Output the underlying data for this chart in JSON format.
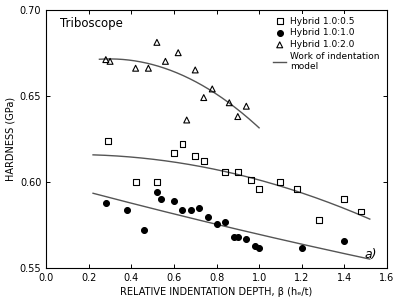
{
  "title_text": "Triboscope",
  "xlabel": "RELATIVE INDENTATION DEPTH, β (hₑ/t)",
  "ylabel": "HARDNESS (GPa)",
  "xlim": [
    0.0,
    1.6
  ],
  "ylim": [
    0.55,
    0.7
  ],
  "xticks": [
    0.0,
    0.2,
    0.4,
    0.6,
    0.8,
    1.0,
    1.2,
    1.4,
    1.6
  ],
  "yticks": [
    0.55,
    0.6,
    0.65,
    0.7
  ],
  "annotation": "a)",
  "hybrid_105_x": [
    0.29,
    0.42,
    0.52,
    0.6,
    0.64,
    0.7,
    0.74,
    0.84,
    0.9,
    0.96,
    1.0,
    1.1,
    1.18,
    1.28,
    1.4,
    1.48
  ],
  "hybrid_105_y": [
    0.624,
    0.6,
    0.6,
    0.617,
    0.622,
    0.615,
    0.612,
    0.606,
    0.606,
    0.601,
    0.596,
    0.6,
    0.596,
    0.578,
    0.59,
    0.583
  ],
  "hybrid_110_x": [
    0.28,
    0.38,
    0.46,
    0.52,
    0.54,
    0.6,
    0.64,
    0.68,
    0.72,
    0.76,
    0.8,
    0.84,
    0.88,
    0.9,
    0.94,
    0.98,
    1.0,
    1.2,
    1.4
  ],
  "hybrid_110_y": [
    0.588,
    0.584,
    0.572,
    0.594,
    0.59,
    0.589,
    0.584,
    0.584,
    0.585,
    0.58,
    0.576,
    0.577,
    0.568,
    0.568,
    0.567,
    0.563,
    0.562,
    0.562,
    0.566
  ],
  "hybrid_120_x": [
    0.28,
    0.3,
    0.42,
    0.48,
    0.52,
    0.56,
    0.62,
    0.66,
    0.7,
    0.74,
    0.78,
    0.86,
    0.9,
    0.94
  ],
  "hybrid_120_y": [
    0.671,
    0.67,
    0.666,
    0.666,
    0.681,
    0.67,
    0.675,
    0.636,
    0.665,
    0.649,
    0.654,
    0.646,
    0.638,
    0.644
  ],
  "line_color": "#555555",
  "bg_color": "#ffffff",
  "text_color": "#000000",
  "fit_105_params": [
    0.6355,
    -0.045,
    0.22,
    1.52
  ],
  "fit_110_params": [
    0.6095,
    -0.048,
    0.22,
    1.52
  ],
  "fit_120_params": [
    0.69,
    -0.065,
    0.25,
    1.0
  ]
}
